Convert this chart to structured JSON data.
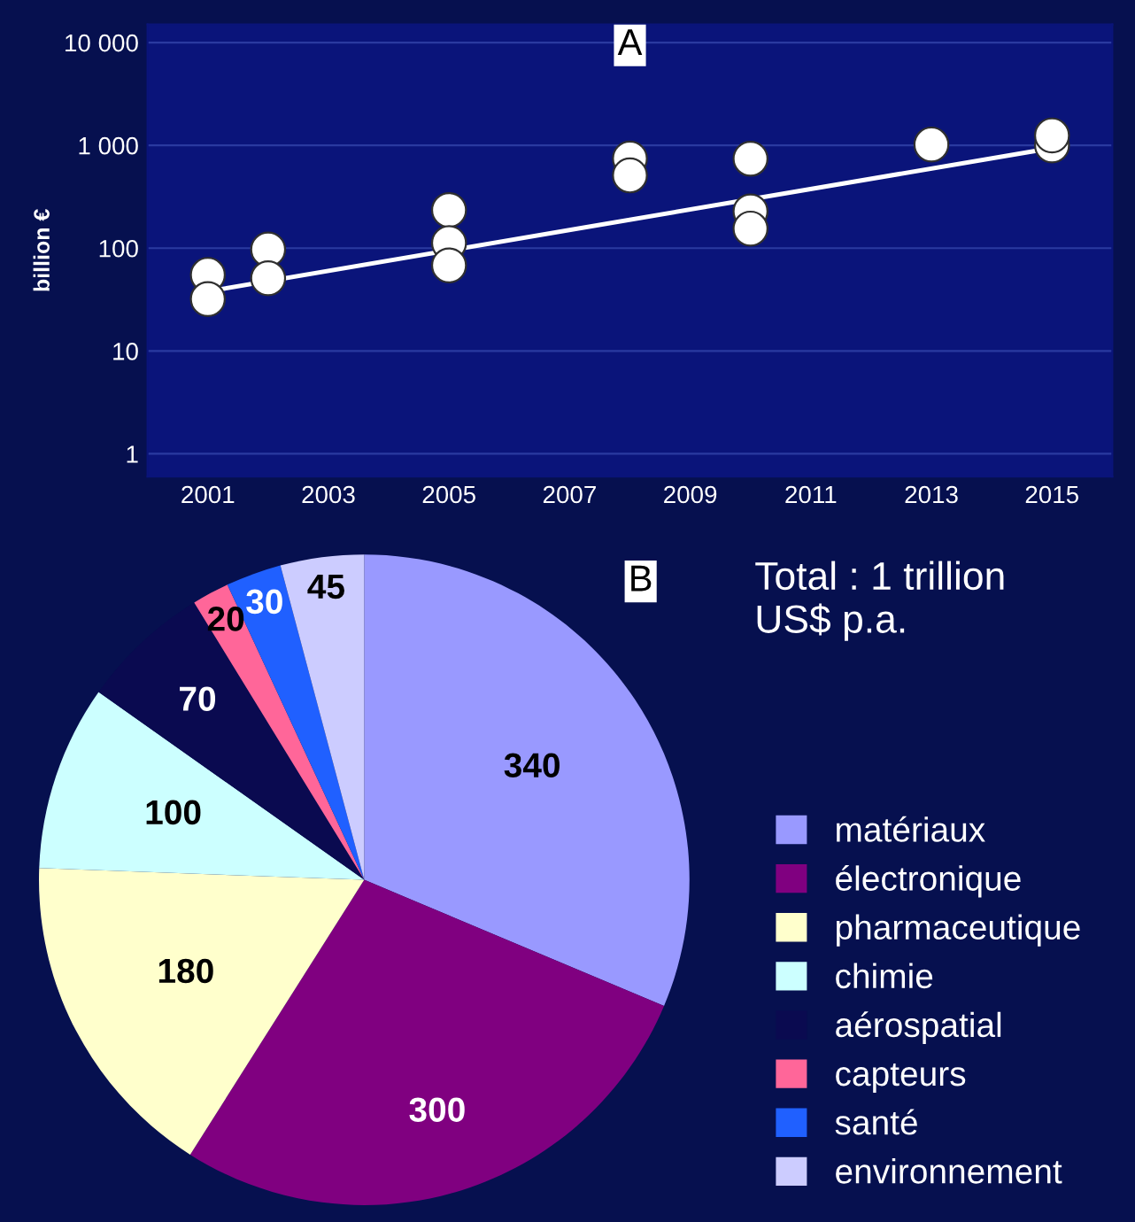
{
  "chart_data": [
    {
      "type": "scatter",
      "title": "A",
      "ylabel": "billion €",
      "log": "y",
      "grid": "y",
      "legend": false,
      "xlim": [
        2000,
        2016
      ],
      "xticks": [
        2001,
        2003,
        2005,
        2007,
        2009,
        2011,
        2013,
        2015
      ],
      "ylim": [
        0.6,
        15000
      ],
      "yticks": [
        1,
        10,
        100,
        {
          "value": 1000,
          "label": "1 000"
        },
        {
          "value": 10000,
          "label": "10 000"
        }
      ],
      "series": [
        {
          "color": "#ffffff",
          "marker": "circle",
          "x": [
            2001,
            2001,
            2002,
            2002,
            2005,
            2005,
            2005,
            2008,
            2008,
            2010,
            2010,
            2010,
            2013,
            2015,
            2015
          ],
          "values": [
            55,
            32,
            97,
            51,
            235,
            112,
            68,
            745,
            510,
            740,
            228,
            155,
            1020,
            1000,
            1250
          ]
        },
        {
          "type": "line",
          "color": "#ffffff",
          "marker": "none",
          "x": [
            2001,
            2015
          ],
          "values": [
            38,
            940
          ]
        }
      ]
    },
    {
      "type": "pie",
      "title": "B",
      "legend": "right",
      "data_labels": true,
      "annotations": [
        "Total : 1 trillion\nUS$ p.a."
      ],
      "categories": [
        "matériaux",
        "électronique",
        "pharmaceutique",
        "chimie",
        "aérospatial",
        "capteurs",
        "santé",
        "environnement"
      ],
      "values": [
        340,
        300,
        180,
        100,
        70,
        20,
        30,
        45
      ],
      "colors": [
        "#9999ff",
        "#800080",
        "#ffffcc",
        "#ccffff",
        "#0a0a50",
        "#ff6699",
        "#2060ff",
        "#ccccff"
      ]
    }
  ]
}
